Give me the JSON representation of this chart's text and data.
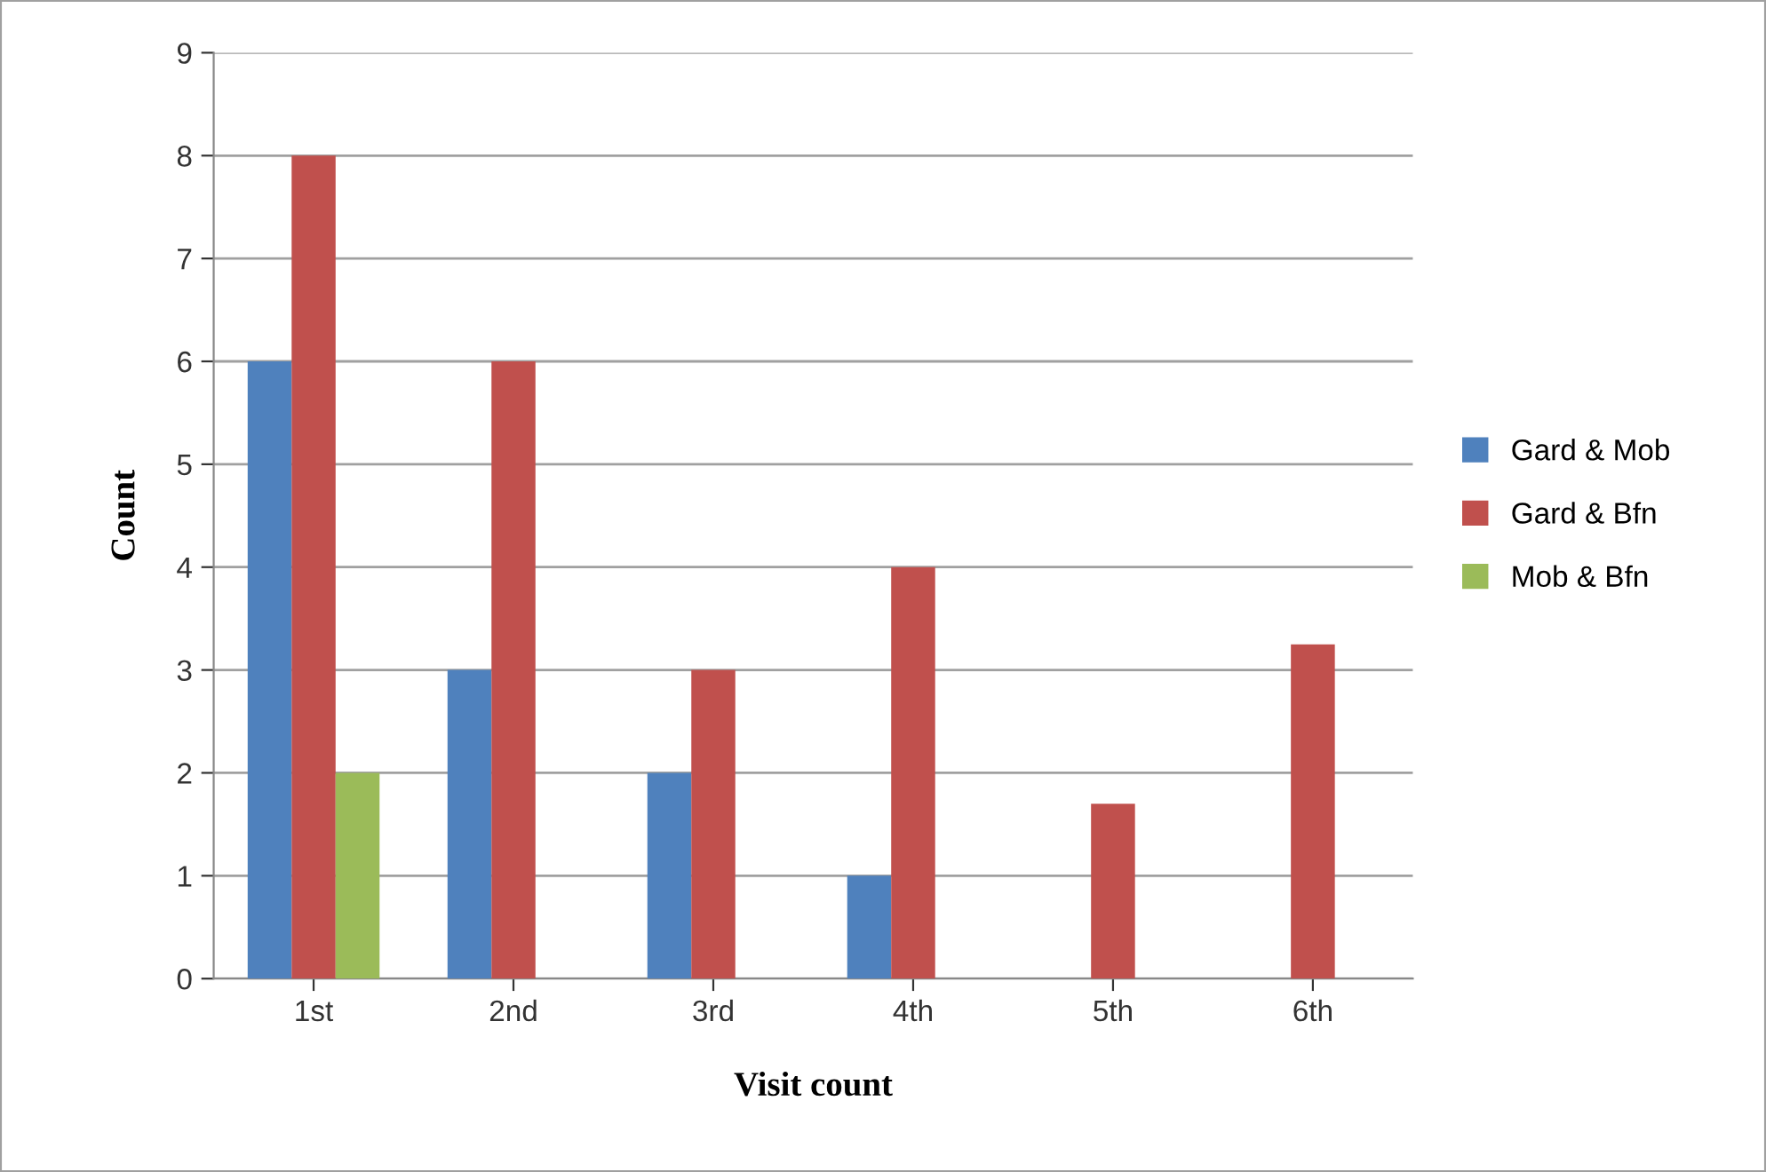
{
  "chart_data": {
    "type": "bar",
    "xlabel": "Visit count",
    "ylabel": "Count",
    "categories": [
      "1st",
      "2nd",
      "3rd",
      "4th",
      "5th",
      "6th"
    ],
    "series": [
      {
        "name": "Gard & Mob",
        "color": "#4f81bd",
        "values": [
          6,
          3,
          2,
          1,
          null,
          null
        ]
      },
      {
        "name": "Gard & Bfn",
        "color": "#c0504d",
        "values": [
          8,
          6,
          3,
          4,
          1.7,
          3.25
        ]
      },
      {
        "name": "Mob & Bfn",
        "color": "#9bbb59",
        "values": [
          2,
          null,
          null,
          null,
          null,
          null
        ]
      }
    ],
    "ylim": [
      0,
      9
    ],
    "yticks": [
      0,
      1,
      2,
      3,
      4,
      5,
      6,
      7,
      8,
      9
    ],
    "grid": "y",
    "legend": "right"
  }
}
